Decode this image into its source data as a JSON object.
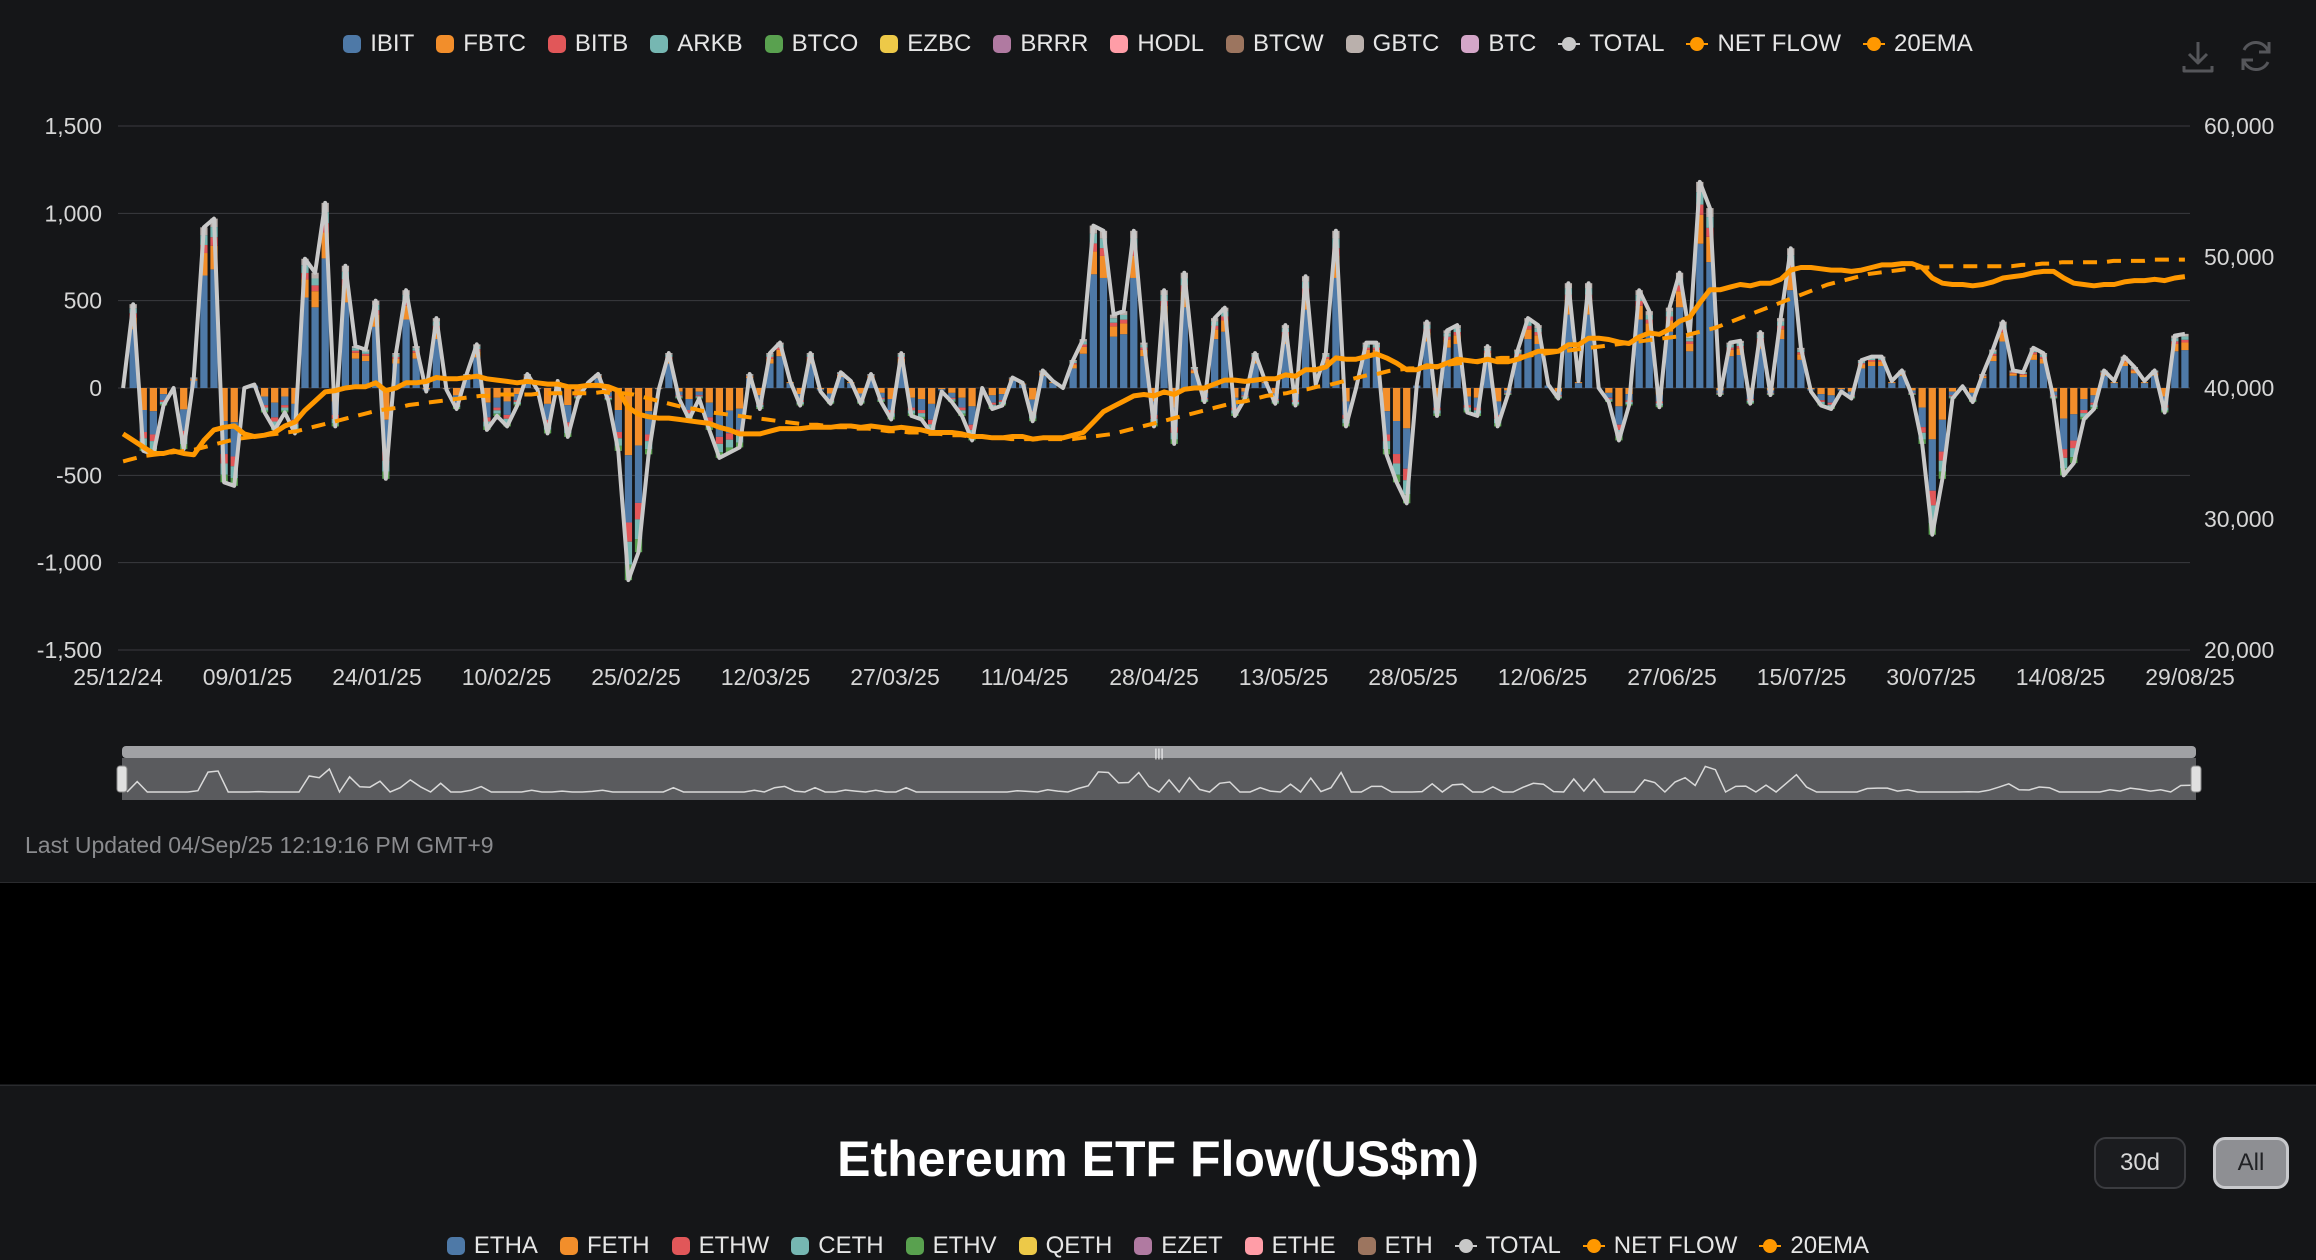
{
  "btc_chart": {
    "legend": [
      {
        "label": "IBIT",
        "color": "#4e79a7",
        "kind": "bar"
      },
      {
        "label": "FBTC",
        "color": "#f28e2b",
        "kind": "bar"
      },
      {
        "label": "BITB",
        "color": "#e15759",
        "kind": "bar"
      },
      {
        "label": "ARKB",
        "color": "#76b7b2",
        "kind": "bar"
      },
      {
        "label": "BTCO",
        "color": "#59a14f",
        "kind": "bar"
      },
      {
        "label": "EZBC",
        "color": "#edc948",
        "kind": "bar"
      },
      {
        "label": "BRRR",
        "color": "#b07aa1",
        "kind": "bar"
      },
      {
        "label": "HODL",
        "color": "#ff9da7",
        "kind": "bar"
      },
      {
        "label": "BTCW",
        "color": "#9c755f",
        "kind": "bar"
      },
      {
        "label": "GBTC",
        "color": "#bab0ac",
        "kind": "bar"
      },
      {
        "label": "BTC",
        "color": "#d4a6c8",
        "kind": "bar"
      },
      {
        "label": "TOTAL",
        "color": "#c8c8c8",
        "kind": "line"
      },
      {
        "label": "NET FLOW",
        "color": "#ff9800",
        "kind": "line"
      },
      {
        "label": "20EMA",
        "color": "#ff9800",
        "kind": "line"
      }
    ],
    "icons": [
      "download-icon",
      "refresh-icon"
    ],
    "last_updated": "Last Updated 04/Sep/25 12:19:16 PM GMT+9"
  },
  "chart_data": {
    "type": "bar",
    "x_tick_labels": [
      "25/12/24",
      "09/01/25",
      "24/01/25",
      "10/02/25",
      "25/02/25",
      "12/03/25",
      "27/03/25",
      "11/04/25",
      "28/04/25",
      "13/05/25",
      "28/05/25",
      "12/06/25",
      "27/06/25",
      "15/07/25",
      "30/07/25",
      "14/08/25",
      "29/08/25"
    ],
    "y_left": {
      "ticks": [
        1500,
        1000,
        500,
        0,
        -500,
        -1000,
        -1500
      ],
      "tick_labels": [
        "1,500",
        "1,000",
        "500",
        "0",
        "-500",
        "-1,000",
        "-1,500"
      ],
      "range": [
        -1500,
        1500
      ]
    },
    "y_right": {
      "ticks": [
        60000,
        50000,
        40000,
        30000,
        20000
      ],
      "tick_labels": [
        "60,000",
        "50,000",
        "40,000",
        "30,000",
        "20,000"
      ],
      "range": [
        20000,
        60000
      ]
    },
    "grid": true,
    "legend_position": "top-center",
    "total_daily": [
      0,
      480,
      -360,
      -380,
      -100,
      0,
      -350,
      60,
      920,
      970,
      -540,
      -560,
      0,
      20,
      -140,
      -240,
      -140,
      -260,
      740,
      660,
      1060,
      -220,
      700,
      240,
      220,
      500,
      -520,
      200,
      560,
      240,
      -20,
      400,
      -10,
      -120,
      80,
      250,
      -240,
      -160,
      -220,
      -100,
      80,
      -10,
      -260,
      40,
      -280,
      -60,
      30,
      80,
      -70,
      -360,
      -1100,
      -940,
      -380,
      -10,
      200,
      -60,
      -180,
      -60,
      -240,
      -400,
      -370,
      -340,
      80,
      -120,
      200,
      260,
      40,
      -100,
      200,
      -20,
      -90,
      90,
      40,
      -90,
      80,
      -80,
      -180,
      200,
      -160,
      -180,
      -260,
      -20,
      -80,
      -160,
      -300,
      0,
      -120,
      -100,
      60,
      30,
      -190,
      100,
      40,
      0,
      160,
      280,
      930,
      900,
      420,
      440,
      900,
      260,
      -220,
      560,
      -320,
      660,
      120,
      -80,
      400,
      460,
      -160,
      -60,
      200,
      40,
      -90,
      360,
      -100,
      640,
      20,
      200,
      900,
      -220,
      0,
      260,
      260,
      -380,
      -540,
      -660,
      20,
      380,
      -160,
      330,
      360,
      -140,
      -160,
      240,
      -220,
      -40,
      220,
      400,
      360,
      20,
      -60,
      600,
      40,
      600,
      0,
      -80,
      -300,
      -100,
      560,
      440,
      -110,
      460,
      660,
      300,
      1180,
      1030,
      -40,
      260,
      270,
      -90,
      320,
      -40,
      400,
      800,
      230,
      -20,
      -100,
      -120,
      -20,
      -60,
      160,
      180,
      180,
      40,
      100,
      -40,
      -320,
      -840,
      -520,
      -60,
      10,
      -80,
      80,
      220,
      380,
      100,
      90,
      230,
      200,
      -60,
      -500,
      -430,
      -180,
      -120,
      100,
      40,
      180,
      120,
      40,
      100,
      -140,
      300,
      310
    ],
    "cumulative_net_flow": [
      36500,
      36000,
      35500,
      35000,
      35000,
      35200,
      35000,
      34900,
      36000,
      36800,
      37000,
      37100,
      36500,
      36300,
      36400,
      36600,
      37100,
      37400,
      38300,
      39000,
      39700,
      39800,
      40000,
      40100,
      40100,
      40400,
      39800,
      40000,
      40400,
      40400,
      40500,
      40800,
      40700,
      40700,
      40800,
      40900,
      40700,
      40600,
      40500,
      40400,
      40500,
      40400,
      40300,
      40300,
      40100,
      40100,
      40200,
      40200,
      40100,
      39800,
      38500,
      38000,
      37800,
      37700,
      37700,
      37600,
      37500,
      37400,
      37300,
      37000,
      36800,
      36500,
      36500,
      36500,
      36700,
      36900,
      36900,
      36900,
      37000,
      37000,
      37000,
      37100,
      37100,
      37000,
      37100,
      37000,
      36900,
      37000,
      36900,
      36800,
      36600,
      36600,
      36600,
      36500,
      36300,
      36300,
      36200,
      36200,
      36300,
      36300,
      36100,
      36200,
      36200,
      36200,
      36400,
      36600,
      37400,
      38200,
      38600,
      39000,
      39400,
      39500,
      39400,
      39700,
      39500,
      39900,
      40000,
      40000,
      40300,
      40600,
      40600,
      40500,
      40600,
      40700,
      40700,
      41000,
      40900,
      41400,
      41400,
      41600,
      42300,
      42200,
      42200,
      42400,
      42600,
      42300,
      41900,
      41400,
      41400,
      41700,
      41600,
      41900,
      42200,
      42100,
      42000,
      42200,
      42000,
      42000,
      42200,
      42500,
      42800,
      42800,
      42800,
      43300,
      43300,
      43800,
      43800,
      43700,
      43500,
      43400,
      43900,
      44200,
      44100,
      44500,
      45100,
      45400,
      46500,
      47500,
      47500,
      47700,
      47900,
      47800,
      48000,
      48000,
      48300,
      49000,
      49200,
      49200,
      49100,
      49000,
      49000,
      48900,
      49000,
      49200,
      49400,
      49400,
      49500,
      49500,
      49200,
      48400,
      48000,
      47900,
      47900,
      47800,
      47900,
      48100,
      48400,
      48500,
      48600,
      48800,
      48900,
      48900,
      48400,
      48000,
      47900,
      47800,
      47900,
      47900,
      48100,
      48200,
      48200,
      48300,
      48200,
      48400,
      48500
    ],
    "ema20_net_flow": [
      34400,
      34600,
      34800,
      34900,
      35000,
      35100,
      35200,
      35300,
      35500,
      35700,
      35900,
      36100,
      36200,
      36300,
      36400,
      36500,
      36600,
      36700,
      36900,
      37100,
      37300,
      37500,
      37700,
      37900,
      38100,
      38300,
      38400,
      38500,
      38700,
      38800,
      38900,
      39000,
      39100,
      39200,
      39300,
      39400,
      39400,
      39500,
      39500,
      39500,
      39500,
      39600,
      39600,
      39600,
      39600,
      39600,
      39600,
      39700,
      39600,
      39600,
      39500,
      39300,
      39100,
      38900,
      38700,
      38500,
      38400,
      38200,
      38100,
      38000,
      37900,
      37800,
      37700,
      37600,
      37500,
      37400,
      37300,
      37200,
      37200,
      37100,
      37000,
      37000,
      36900,
      36900,
      36800,
      36700,
      36700,
      36600,
      36600,
      36500,
      36500,
      36400,
      36400,
      36300,
      36300,
      36200,
      36200,
      36100,
      36100,
      36100,
      36100,
      36100,
      36100,
      36100,
      36200,
      36300,
      36400,
      36500,
      36700,
      36900,
      37100,
      37300,
      37500,
      37700,
      37900,
      38100,
      38300,
      38500,
      38700,
      38900,
      39000,
      39200,
      39400,
      39500,
      39600,
      39800,
      39900,
      40100,
      40200,
      40400,
      40600,
      40800,
      41000,
      41100,
      41300,
      41400,
      41500,
      41500,
      41600,
      41700,
      41800,
      41900,
      42000,
      42100,
      42200,
      42300,
      42300,
      42400,
      42500,
      42600,
      42700,
      42800,
      42900,
      43000,
      43100,
      43200,
      43300,
      43400,
      43500,
      43600,
      43700,
      43800,
      43900,
      44000,
      44200,
      44400,
      44600,
      44900,
      45200,
      45500,
      45800,
      46100,
      46400,
      46700,
      47000,
      47300,
      47600,
      47900,
      48100,
      48300,
      48500,
      48700,
      48800,
      48900,
      49000,
      49100,
      49200,
      49200,
      49300,
      49300,
      49300,
      49300,
      49300,
      49300,
      49300,
      49300,
      49400,
      49400,
      49500,
      49500,
      49600,
      49600,
      49600,
      49600,
      49600,
      49700,
      49700,
      49700,
      49700,
      49800,
      49800,
      49800,
      49800
    ]
  },
  "eth_chart": {
    "title": "Ethereum ETF Flow(US$m)",
    "range_buttons": [
      "30d",
      "All"
    ],
    "legend": [
      {
        "label": "ETHA",
        "color": "#4e79a7"
      },
      {
        "label": "FETH",
        "color": "#f28e2b"
      },
      {
        "label": "ETHW",
        "color": "#e15759"
      },
      {
        "label": "CETH",
        "color": "#76b7b2"
      },
      {
        "label": "ETHV",
        "color": "#59a14f"
      },
      {
        "label": "QETH",
        "color": "#edc948"
      },
      {
        "label": "EZET",
        "color": "#b07aa1"
      },
      {
        "label": "ETHE",
        "color": "#ff9da7"
      },
      {
        "label": "ETH",
        "color": "#9c755f"
      },
      {
        "label": "TOTAL",
        "color": "#c8c8c8"
      },
      {
        "label": "NET FLOW",
        "color": "#ff9800"
      },
      {
        "label": "20EMA",
        "color": "#ff9800"
      }
    ]
  }
}
